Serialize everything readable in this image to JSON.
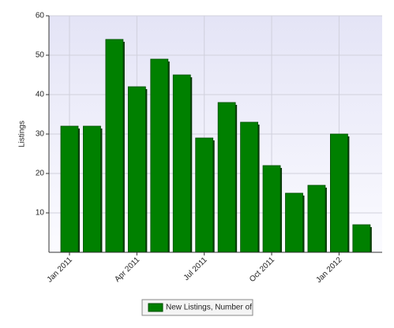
{
  "chart_data": {
    "type": "bar",
    "y_label": "Listings",
    "categories": [
      "Jan 2011",
      null,
      null,
      "Apr 2011",
      null,
      null,
      "Jul 2011",
      null,
      null,
      "Oct 2011",
      null,
      null,
      "Jan 2012",
      null
    ],
    "series": [
      {
        "name": "New Listings, Number of",
        "color": "#008000",
        "values": [
          32,
          32,
          54,
          42,
          49,
          45,
          29,
          38,
          33,
          22,
          15,
          17,
          30,
          7
        ]
      }
    ],
    "ylim": [
      0,
      60
    ],
    "yticks": [
      10,
      20,
      30,
      40,
      50,
      60
    ],
    "grid": true
  }
}
